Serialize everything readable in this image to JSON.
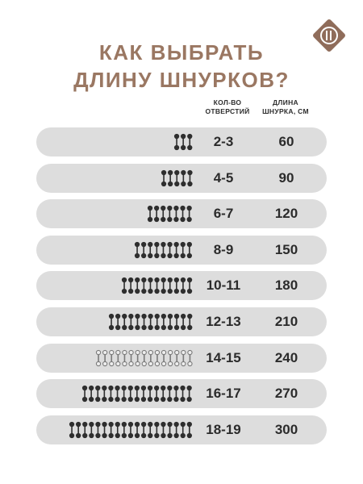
{
  "title": {
    "line1": "КАК ВЫБРАТЬ",
    "line2": "ДЛИНУ ШНУРКОВ?"
  },
  "headers": {
    "holes_line1": "КОЛ-ВО",
    "holes_line2": "ОТВЕРСТИЙ",
    "length_line1": "ДЛИНА",
    "length_line2": "ШНУРКА, СМ"
  },
  "logo_icon": "diamond-logo-icon",
  "colors": {
    "title": "#9a7762",
    "row_bg": "#dddddd",
    "text": "#2b2b2b",
    "lace_dark": "#2e2e2e",
    "lace_light": "#7a7a7a"
  },
  "rows": [
    {
      "holes": "2-3",
      "length": "60",
      "pairs": 3,
      "shade": "dark"
    },
    {
      "holes": "4-5",
      "length": "90",
      "pairs": 5,
      "shade": "dark"
    },
    {
      "holes": "6-7",
      "length": "120",
      "pairs": 7,
      "shade": "dark"
    },
    {
      "holes": "8-9",
      "length": "150",
      "pairs": 9,
      "shade": "dark"
    },
    {
      "holes": "10-11",
      "length": "180",
      "pairs": 11,
      "shade": "dark"
    },
    {
      "holes": "12-13",
      "length": "210",
      "pairs": 13,
      "shade": "dark"
    },
    {
      "holes": "14-15",
      "length": "240",
      "pairs": 15,
      "shade": "light"
    },
    {
      "holes": "16-17",
      "length": "270",
      "pairs": 17,
      "shade": "dark"
    },
    {
      "holes": "18-19",
      "length": "300",
      "pairs": 19,
      "shade": "dark"
    }
  ]
}
